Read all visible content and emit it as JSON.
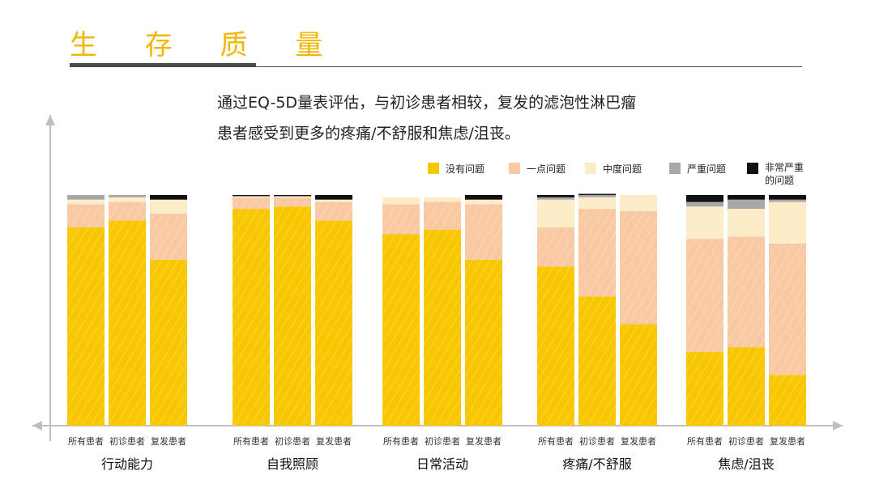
{
  "header": {
    "title": "生 存 质 量"
  },
  "description": {
    "line1": "通过EQ-5D量表评估，与初诊患者相较，复发的滤泡性淋巴瘤",
    "line2": "患者感受到更多的疼痛/不舒服和焦虑/沮丧。"
  },
  "chart_data": {
    "type": "bar",
    "stacked": true,
    "ylim": [
      0,
      100
    ],
    "grid": false,
    "legend_position": "top-right",
    "groups": [
      "行动能力",
      "自我照顾",
      "日常活动",
      "疼痛/不舒服",
      "焦虑/沮丧"
    ],
    "categories": [
      "所有患者",
      "初诊患者",
      "复发患者"
    ],
    "series": [
      {
        "name": "没有问题",
        "color": "#f8c700",
        "values": [
          [
            86,
            89,
            72
          ],
          [
            94,
            95,
            89
          ],
          [
            83,
            85,
            72
          ],
          [
            69,
            56,
            44
          ],
          [
            32,
            34,
            22
          ]
        ]
      },
      {
        "name": "一点问题",
        "color": "#f8c9a3",
        "values": [
          [
            10,
            8,
            20
          ],
          [
            5,
            4,
            8
          ],
          [
            13,
            12,
            24
          ],
          [
            17,
            38,
            49
          ],
          [
            49,
            48,
            57
          ]
        ]
      },
      {
        "name": "中度问题",
        "color": "#fcedc8",
        "values": [
          [
            2,
            2,
            6
          ],
          [
            0.5,
            0.5,
            1
          ],
          [
            3,
            2,
            2
          ],
          [
            12,
            5,
            7
          ],
          [
            14,
            12,
            18
          ]
        ]
      },
      {
        "name": "严重问题",
        "color": "#a8a8a8",
        "values": [
          [
            2,
            1,
            0
          ],
          [
            0,
            0,
            0
          ],
          [
            0,
            0,
            0
          ],
          [
            1,
            1,
            0
          ],
          [
            2,
            4,
            1
          ]
        ]
      },
      {
        "name": "非常严重的问题",
        "color": "#111111",
        "values": [
          [
            0,
            0,
            2
          ],
          [
            0.5,
            0.5,
            2
          ],
          [
            0,
            0,
            2
          ],
          [
            1,
            0.5,
            0
          ],
          [
            3,
            2,
            2
          ]
        ]
      }
    ]
  }
}
